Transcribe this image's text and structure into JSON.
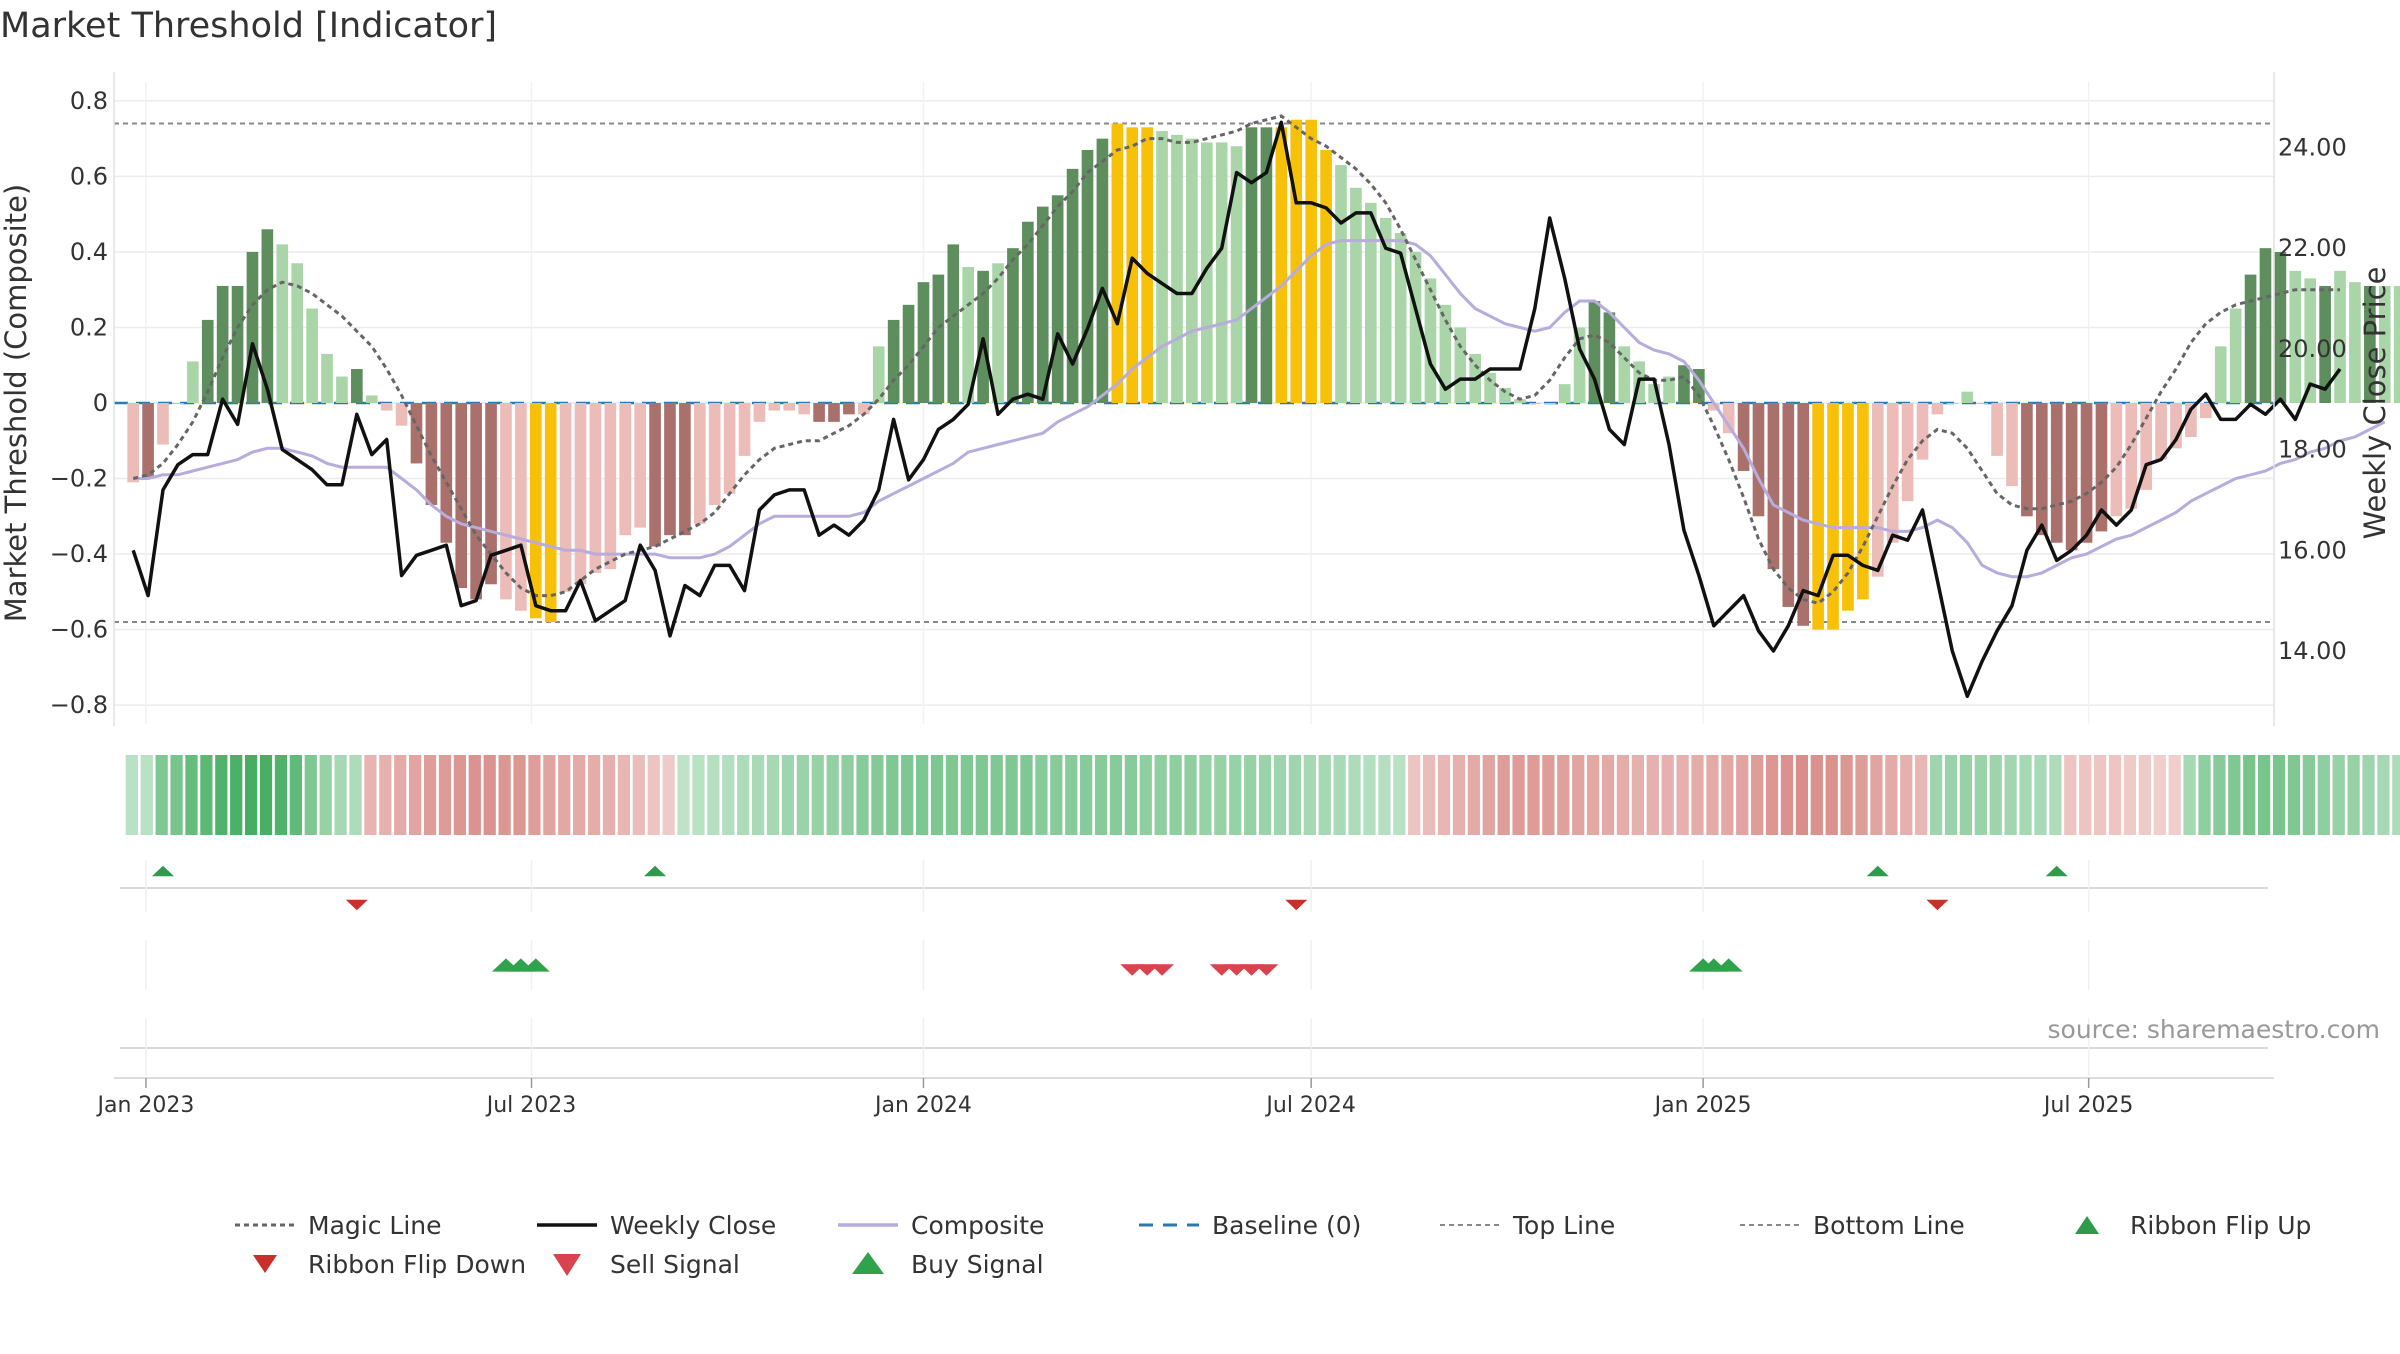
{
  "chart_data": {
    "type": "bar",
    "title": "Market Threshold [Indicator]",
    "ylabel_left": "Market Threshold (Composite)",
    "ylabel_right": "Weekly Close Price",
    "source": "source: sharemaestro.com",
    "ylim_left": [
      -0.85,
      0.85
    ],
    "ylim_right": [
      12.55,
      25.3
    ],
    "yticks_left": [
      0.8,
      0.6,
      0.4,
      0.2,
      0,
      -0.2,
      -0.4,
      -0.6,
      -0.8
    ],
    "ytick_labels_left": [
      "0.8",
      "0.6",
      "0.4",
      "0.2",
      "0",
      "−0.2",
      "−0.4",
      "−0.6",
      "−0.8"
    ],
    "yticks_right": [
      24,
      22,
      20,
      18,
      16,
      14
    ],
    "ytick_labels_right": [
      "24.00",
      "22.00",
      "20.00",
      "18.00",
      "16.00",
      "14.00"
    ],
    "x_start": "2022-12-26",
    "x_step_days": 7,
    "xlim": [
      "2022-12-17",
      "2025-09-26"
    ],
    "xticks": [
      "2023-01-01",
      "2023-07-01",
      "2024-01-01",
      "2024-07-01",
      "2025-01-01",
      "2025-07-01"
    ],
    "xtick_labels": [
      "Jan 2023",
      "Jul 2023",
      "Jan 2024",
      "Jul 2024",
      "Jan 2025",
      "Jul 2025"
    ],
    "top_line": 0.74,
    "bottom_line": -0.58,
    "baseline": 0,
    "colors": {
      "pos_strong": "#5e8e5e",
      "pos_light": "#a9d5a9",
      "neg_strong": "#a9706c",
      "neg_light": "#ebbcb8",
      "extreme": "#f7c10a",
      "close": "#111111",
      "composite": "#b7acdc",
      "magic": "#666666",
      "baseline": "#2a7ab0",
      "threshold": "#888888",
      "flip_up": "#2e9a4a",
      "flip_down": "#c9302c",
      "sell": "#d9434f",
      "buy": "#31a24c"
    },
    "histogram": [
      -0.21,
      -0.2,
      -0.11,
      0.0,
      0.11,
      0.22,
      0.31,
      0.31,
      0.4,
      0.46,
      0.42,
      0.37,
      0.25,
      0.13,
      0.07,
      0.09,
      0.02,
      -0.02,
      -0.06,
      -0.16,
      -0.27,
      -0.37,
      -0.49,
      -0.52,
      -0.48,
      -0.52,
      -0.55,
      -0.57,
      -0.58,
      -0.5,
      -0.48,
      -0.45,
      -0.44,
      -0.35,
      -0.33,
      -0.38,
      -0.35,
      -0.35,
      -0.32,
      -0.27,
      -0.24,
      -0.14,
      -0.05,
      -0.02,
      -0.02,
      -0.03,
      -0.05,
      -0.05,
      -0.03,
      -0.03,
      0.15,
      0.22,
      0.26,
      0.32,
      0.34,
      0.42,
      0.36,
      0.35,
      0.37,
      0.41,
      0.48,
      0.52,
      0.55,
      0.62,
      0.67,
      0.7,
      0.74,
      0.73,
      0.73,
      0.72,
      0.71,
      0.7,
      0.69,
      0.69,
      0.68,
      0.73,
      0.73,
      0.73,
      0.75,
      0.75,
      0.67,
      0.63,
      0.57,
      0.53,
      0.49,
      0.45,
      0.4,
      0.33,
      0.26,
      0.2,
      0.13,
      0.08,
      0.04,
      0.01,
      0.0,
      0.0,
      0.05,
      0.2,
      0.27,
      0.24,
      0.15,
      0.11,
      0.05,
      0.07,
      0.1,
      0.09,
      -0.02,
      -0.08,
      -0.18,
      -0.3,
      -0.44,
      -0.54,
      -0.59,
      -0.6,
      -0.6,
      -0.55,
      -0.52,
      -0.46,
      -0.37,
      -0.26,
      -0.15,
      -0.03,
      0.0,
      0.03,
      0.0,
      -0.14,
      -0.22,
      -0.3,
      -0.35,
      -0.37,
      -0.39,
      -0.37,
      -0.34,
      -0.3,
      -0.28,
      -0.23,
      -0.15,
      -0.12,
      -0.09,
      -0.04,
      0.15,
      0.25,
      0.34,
      0.41,
      0.4,
      0.35,
      0.33,
      0.31,
      0.35,
      0.32,
      0.31,
      0.31,
      0.31
    ],
    "histogram_colors": [
      "L",
      "S",
      "L",
      "L",
      "L",
      "S",
      "S",
      "S",
      "S",
      "S",
      "L",
      "L",
      "L",
      "L",
      "L",
      "S",
      "L",
      "L",
      "L",
      "S",
      "S",
      "S",
      "S",
      "S",
      "S",
      "L",
      "L",
      "E",
      "E",
      "L",
      "L",
      "L",
      "L",
      "L",
      "L",
      "S",
      "S",
      "S",
      "L",
      "L",
      "L",
      "L",
      "L",
      "L",
      "L",
      "L",
      "S",
      "S",
      "S",
      "L",
      "L",
      "S",
      "S",
      "S",
      "S",
      "S",
      "L",
      "S",
      "L",
      "S",
      "S",
      "S",
      "S",
      "S",
      "S",
      "S",
      "E",
      "E",
      "E",
      "L",
      "L",
      "L",
      "L",
      "L",
      "L",
      "S",
      "S",
      "E",
      "E",
      "E",
      "E",
      "L",
      "L",
      "L",
      "L",
      "L",
      "L",
      "L",
      "L",
      "L",
      "L",
      "L",
      "L",
      "L",
      "L",
      "L",
      "L",
      "L",
      "S",
      "S",
      "L",
      "L",
      "L",
      "L",
      "S",
      "S",
      "L",
      "L",
      "S",
      "S",
      "S",
      "S",
      "S",
      "E",
      "E",
      "E",
      "E",
      "L",
      "L",
      "L",
      "L",
      "L",
      "L",
      "L",
      "L",
      "L",
      "L",
      "S",
      "S",
      "S",
      "S",
      "S",
      "S",
      "L",
      "L",
      "L",
      "L",
      "L",
      "L",
      "L",
      "L",
      "L",
      "S",
      "S",
      "S",
      "L",
      "L",
      "S",
      "L",
      "L",
      "S",
      "L",
      "L",
      "S"
    ],
    "close": [
      16.0,
      15.1,
      17.2,
      17.7,
      17.9,
      17.9,
      19.0,
      18.5,
      20.1,
      19.2,
      18.0,
      17.8,
      17.6,
      17.3,
      17.3,
      18.7,
      17.9,
      18.2,
      15.5,
      15.9,
      16.0,
      16.1,
      14.9,
      15.0,
      15.9,
      16.0,
      16.1,
      14.9,
      14.8,
      14.8,
      15.4,
      14.6,
      14.8,
      15.0,
      16.1,
      15.6,
      14.3,
      15.3,
      15.1,
      15.7,
      15.7,
      15.2,
      16.8,
      17.1,
      17.2,
      17.2,
      16.3,
      16.5,
      16.3,
      16.6,
      17.2,
      18.6,
      17.4,
      17.8,
      18.4,
      18.6,
      18.9,
      20.2,
      18.7,
      19.0,
      19.1,
      19.0,
      20.3,
      19.7,
      20.4,
      21.2,
      20.5,
      21.8,
      21.5,
      21.3,
      21.1,
      21.1,
      21.6,
      22.0,
      23.5,
      23.3,
      23.5,
      24.5,
      22.9,
      22.9,
      22.8,
      22.5,
      22.7,
      22.7,
      22.0,
      21.9,
      20.8,
      19.7,
      19.2,
      19.4,
      19.4,
      19.6,
      19.6,
      19.6,
      20.8,
      22.6,
      21.4,
      20.0,
      19.4,
      18.4,
      18.1,
      19.4,
      19.4,
      18.1,
      16.4,
      15.5,
      14.5,
      14.8,
      15.1,
      14.4,
      14.0,
      14.5,
      15.2,
      15.1,
      15.9,
      15.9,
      15.7,
      15.6,
      16.3,
      16.2,
      16.8,
      15.4,
      14.0,
      13.1,
      13.8,
      14.4,
      14.9,
      16.0,
      16.5,
      15.8,
      16.0,
      16.3,
      16.8,
      16.5,
      16.8,
      17.7,
      17.8,
      18.2,
      18.8,
      19.1,
      18.6,
      18.6,
      18.9,
      18.7,
      19.0,
      18.6,
      19.3,
      19.2,
      19.6
    ],
    "composite": [
      -0.2,
      -0.2,
      -0.19,
      -0.19,
      -0.18,
      -0.17,
      -0.16,
      -0.15,
      -0.13,
      -0.12,
      -0.12,
      -0.13,
      -0.14,
      -0.16,
      -0.17,
      -0.17,
      -0.17,
      -0.17,
      -0.2,
      -0.23,
      -0.27,
      -0.3,
      -0.32,
      -0.33,
      -0.34,
      -0.35,
      -0.36,
      -0.37,
      -0.38,
      -0.39,
      -0.39,
      -0.4,
      -0.4,
      -0.4,
      -0.4,
      -0.4,
      -0.41,
      -0.41,
      -0.41,
      -0.4,
      -0.38,
      -0.35,
      -0.32,
      -0.3,
      -0.3,
      -0.3,
      -0.3,
      -0.3,
      -0.3,
      -0.29,
      -0.26,
      -0.24,
      -0.22,
      -0.2,
      -0.18,
      -0.16,
      -0.13,
      -0.12,
      -0.11,
      -0.1,
      -0.09,
      -0.08,
      -0.05,
      -0.03,
      -0.01,
      0.02,
      0.05,
      0.09,
      0.12,
      0.15,
      0.17,
      0.19,
      0.2,
      0.21,
      0.22,
      0.25,
      0.28,
      0.31,
      0.35,
      0.39,
      0.42,
      0.43,
      0.43,
      0.43,
      0.43,
      0.43,
      0.42,
      0.39,
      0.34,
      0.29,
      0.25,
      0.23,
      0.21,
      0.2,
      0.19,
      0.2,
      0.24,
      0.27,
      0.27,
      0.24,
      0.2,
      0.16,
      0.14,
      0.13,
      0.11,
      0.06,
      0.0,
      -0.06,
      -0.12,
      -0.2,
      -0.27,
      -0.29,
      -0.31,
      -0.32,
      -0.33,
      -0.33,
      -0.33,
      -0.33,
      -0.34,
      -0.34,
      -0.33,
      -0.31,
      -0.33,
      -0.37,
      -0.43,
      -0.45,
      -0.46,
      -0.46,
      -0.45,
      -0.43,
      -0.41,
      -0.4,
      -0.38,
      -0.36,
      -0.35,
      -0.33,
      -0.31,
      -0.29,
      -0.26,
      -0.24,
      -0.22,
      -0.2,
      -0.19,
      -0.18,
      -0.16,
      -0.15,
      -0.13,
      -0.12,
      -0.1,
      -0.09,
      -0.07,
      -0.05
    ],
    "magic_line": [
      -0.2,
      -0.19,
      -0.16,
      -0.11,
      -0.05,
      0.03,
      0.12,
      0.2,
      0.26,
      0.3,
      0.32,
      0.31,
      0.29,
      0.26,
      0.23,
      0.19,
      0.15,
      0.09,
      0.02,
      -0.06,
      -0.14,
      -0.21,
      -0.28,
      -0.35,
      -0.4,
      -0.45,
      -0.49,
      -0.51,
      -0.51,
      -0.5,
      -0.47,
      -0.44,
      -0.42,
      -0.4,
      -0.39,
      -0.38,
      -0.36,
      -0.34,
      -0.32,
      -0.29,
      -0.24,
      -0.19,
      -0.15,
      -0.12,
      -0.11,
      -0.1,
      -0.1,
      -0.08,
      -0.06,
      -0.03,
      0.01,
      0.06,
      0.1,
      0.15,
      0.2,
      0.23,
      0.26,
      0.29,
      0.33,
      0.38,
      0.42,
      0.47,
      0.52,
      0.56,
      0.61,
      0.64,
      0.67,
      0.68,
      0.7,
      0.7,
      0.69,
      0.69,
      0.7,
      0.71,
      0.72,
      0.74,
      0.75,
      0.76,
      0.73,
      0.7,
      0.68,
      0.65,
      0.62,
      0.58,
      0.53,
      0.46,
      0.38,
      0.3,
      0.22,
      0.15,
      0.1,
      0.06,
      0.03,
      0.01,
      0.02,
      0.06,
      0.12,
      0.17,
      0.18,
      0.16,
      0.12,
      0.08,
      0.06,
      0.06,
      0.07,
      0.02,
      -0.06,
      -0.15,
      -0.25,
      -0.36,
      -0.44,
      -0.49,
      -0.52,
      -0.53,
      -0.5,
      -0.45,
      -0.38,
      -0.3,
      -0.22,
      -0.15,
      -0.1,
      -0.07,
      -0.08,
      -0.12,
      -0.18,
      -0.24,
      -0.27,
      -0.28,
      -0.28,
      -0.27,
      -0.26,
      -0.24,
      -0.21,
      -0.17,
      -0.11,
      -0.04,
      0.03,
      0.09,
      0.16,
      0.21,
      0.24,
      0.26,
      0.27,
      0.28,
      0.29,
      0.3,
      0.3,
      0.3,
      0.3
    ],
    "ribbon": [
      0.18,
      0.18,
      0.55,
      0.6,
      0.72,
      0.78,
      0.85,
      0.88,
      0.92,
      0.9,
      0.85,
      0.75,
      0.55,
      0.4,
      0.3,
      0.25,
      -0.32,
      -0.35,
      -0.4,
      -0.45,
      -0.5,
      -0.52,
      -0.55,
      -0.58,
      -0.58,
      -0.55,
      -0.55,
      -0.5,
      -0.45,
      -0.42,
      -0.4,
      -0.38,
      -0.35,
      -0.3,
      -0.25,
      -0.2,
      -0.15,
      0.15,
      0.18,
      0.2,
      0.22,
      0.25,
      0.28,
      0.3,
      0.35,
      0.38,
      0.4,
      0.42,
      0.45,
      0.5,
      0.52,
      0.55,
      0.56,
      0.56,
      0.56,
      0.55,
      0.55,
      0.55,
      0.55,
      0.55,
      0.55,
      0.5,
      0.5,
      0.5,
      0.5,
      0.5,
      0.5,
      0.5,
      0.45,
      0.45,
      0.45,
      0.45,
      0.4,
      0.4,
      0.4,
      0.4,
      0.38,
      0.35,
      0.35,
      0.3,
      0.3,
      0.28,
      0.25,
      0.22,
      0.2,
      0.18,
      -0.2,
      -0.25,
      -0.3,
      -0.35,
      -0.4,
      -0.45,
      -0.5,
      -0.52,
      -0.52,
      -0.5,
      -0.48,
      -0.45,
      -0.42,
      -0.4,
      -0.38,
      -0.35,
      -0.35,
      -0.35,
      -0.35,
      -0.38,
      -0.4,
      -0.42,
      -0.45,
      -0.5,
      -0.55,
      -0.6,
      -0.62,
      -0.6,
      -0.6,
      -0.55,
      -0.5,
      -0.45,
      -0.4,
      -0.35,
      -0.3,
      0.35,
      0.38,
      0.4,
      0.38,
      0.36,
      0.33,
      0.3,
      0.28,
      0.25,
      -0.2,
      -0.2,
      -0.18,
      -0.18,
      -0.15,
      -0.15,
      -0.12,
      -0.12,
      0.3,
      0.45,
      0.5,
      0.55,
      0.6,
      0.6,
      0.58,
      0.55,
      0.5,
      0.45,
      0.4,
      0.4,
      0.35,
      0.3,
      0.25
    ],
    "ribbon_flip_up": [
      "2023-01-09",
      "2023-08-28",
      "2025-03-24",
      "2025-06-16"
    ],
    "ribbon_flip_down": [
      "2023-04-10",
      "2024-06-24",
      "2025-04-21"
    ],
    "sell_signals": [
      "2024-04-08",
      "2024-04-15",
      "2024-04-22",
      "2024-05-20",
      "2024-05-27",
      "2024-06-03",
      "2024-06-10"
    ],
    "buy_signals": [
      "2023-06-19",
      "2023-06-26",
      "2023-07-03",
      "2025-01-01",
      "2025-01-06",
      "2025-01-13"
    ],
    "legend": [
      {
        "label": "Magic Line",
        "style": "magic"
      },
      {
        "label": "Weekly Close",
        "style": "close"
      },
      {
        "label": "Composite",
        "style": "composite"
      },
      {
        "label": "Baseline (0)",
        "style": "baseline"
      },
      {
        "label": "Top Line",
        "style": "threshold"
      },
      {
        "label": "Bottom Line",
        "style": "threshold"
      },
      {
        "label": "Ribbon Flip Up",
        "style": "flip_up"
      },
      {
        "label": "Ribbon Flip Down",
        "style": "flip_down"
      },
      {
        "label": "Sell Signal",
        "style": "sell"
      },
      {
        "label": "Buy Signal",
        "style": "buy"
      }
    ]
  }
}
